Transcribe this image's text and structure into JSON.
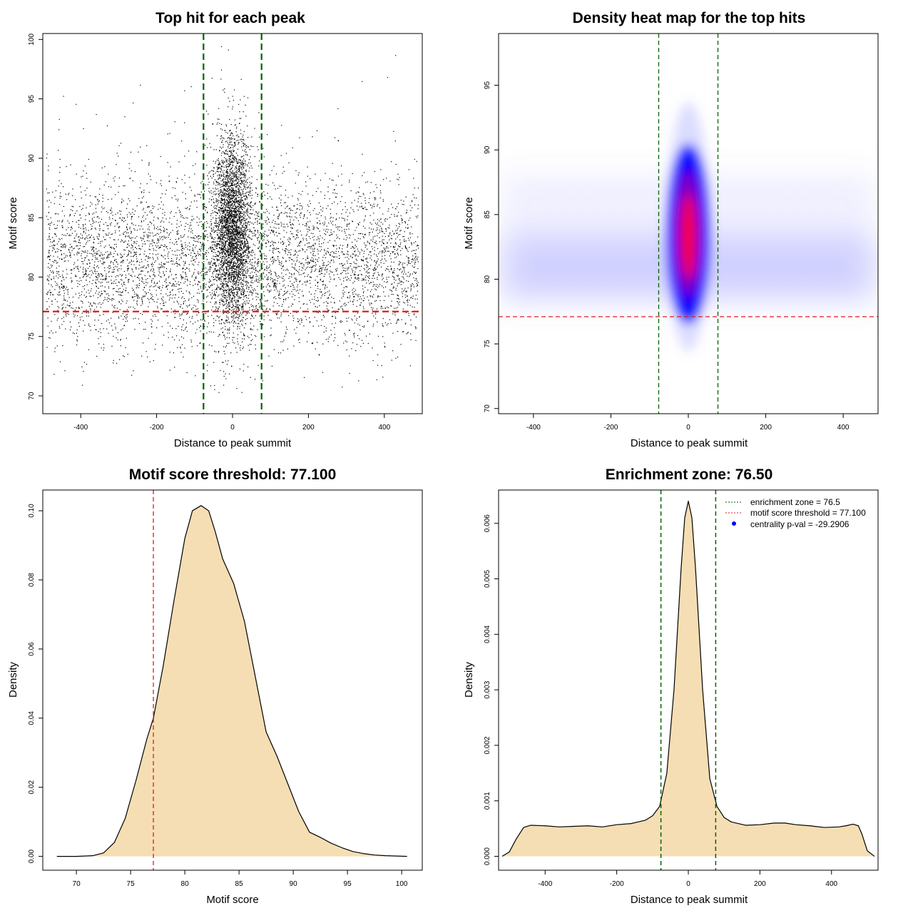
{
  "chart_data": [
    {
      "type": "scatter",
      "title": "Top hit for each peak",
      "xlabel": "Distance to peak summit",
      "ylabel": "Motif score",
      "xlim": [
        -500,
        500
      ],
      "ylim": [
        68.5,
        100.5
      ],
      "xticks": [
        -400,
        -200,
        0,
        200,
        400
      ],
      "yticks": [
        70,
        75,
        80,
        85,
        90,
        95,
        100
      ],
      "vlines": [
        -76.5,
        76.5
      ],
      "hline": 77.1,
      "vline_color": "#006400",
      "hline_color": "#e31a1c",
      "point_color": "#000000",
      "background_points": {
        "x_range": [
          -490,
          490
        ],
        "y_mean": 81.2,
        "y_sd": 3.4
      },
      "central_points": {
        "x_mean": 0,
        "x_sd": 25,
        "y_mean": 84,
        "y_sd": 4
      }
    },
    {
      "type": "heatmap",
      "title": "Density heat map for the top hits",
      "xlabel": "Distance to peak summit",
      "ylabel": "Motif score",
      "xlim": [
        -490,
        490
      ],
      "ylim": [
        69.6,
        99
      ],
      "xticks": [
        -400,
        -200,
        0,
        200,
        400
      ],
      "yticks": [
        70,
        75,
        80,
        85,
        90,
        95
      ],
      "vlines": [
        -76.5,
        76.5
      ],
      "hline": 77.1,
      "vline_color": "#006400",
      "hline_color": "#e31a1c",
      "colors": [
        "#ffffff",
        "#0000ff",
        "#ff0000"
      ],
      "peak_center": {
        "x": 0,
        "y": 83.5
      }
    },
    {
      "type": "area",
      "title": "Motif score threshold: 77.100",
      "xlabel": "Motif score",
      "ylabel": "Density",
      "xlim": [
        66.9,
        101.9
      ],
      "ylim": [
        -0.004,
        0.106
      ],
      "xticks": [
        70,
        75,
        80,
        85,
        90,
        95,
        100
      ],
      "yticks": [
        0.0,
        0.02,
        0.04,
        0.06,
        0.08,
        0.1
      ],
      "ytick_labels": [
        "0.00",
        "0.02",
        "0.04",
        "0.06",
        "0.08",
        "0.10"
      ],
      "vline": 77.1,
      "vline_color": "#e31a1c",
      "fill": "#f5deb3",
      "x": [
        68.2,
        70,
        71.5,
        72.5,
        73.5,
        74.5,
        75.5,
        76.5,
        77.1,
        78,
        79,
        80,
        80.7,
        81.5,
        82.2,
        82.8,
        83.5,
        84.5,
        85.5,
        86.5,
        87.5,
        88.5,
        89.5,
        90.5,
        91.5,
        92.5,
        93.5,
        94.5,
        95.5,
        96.5,
        97.5,
        98.5,
        100.5
      ],
      "y": [
        0,
        0,
        0.0002,
        0.001,
        0.004,
        0.011,
        0.022,
        0.034,
        0.04,
        0.055,
        0.074,
        0.092,
        0.1,
        0.1015,
        0.1,
        0.094,
        0.086,
        0.079,
        0.068,
        0.052,
        0.036,
        0.029,
        0.021,
        0.013,
        0.007,
        0.0055,
        0.0038,
        0.0025,
        0.0014,
        0.0008,
        0.0004,
        0.0002,
        0
      ]
    },
    {
      "type": "area",
      "title": "Enrichment zone: 76.50",
      "xlabel": "Distance to peak summit",
      "ylabel": "Density",
      "xlim": [
        -530,
        530
      ],
      "ylim": [
        -0.00025,
        0.0066
      ],
      "xticks": [
        -400,
        -200,
        0,
        200,
        400
      ],
      "yticks": [
        0,
        0.001,
        0.002,
        0.003,
        0.004,
        0.005,
        0.006
      ],
      "ytick_labels": [
        "0.000",
        "0.001",
        "0.002",
        "0.003",
        "0.004",
        "0.005",
        "0.006"
      ],
      "vlines": [
        -76.5,
        76.5
      ],
      "vline_color": "#006400",
      "fill": "#f5deb3",
      "x": [
        -520,
        -500,
        -480,
        -460,
        -440,
        -400,
        -360,
        -320,
        -280,
        -240,
        -200,
        -160,
        -120,
        -100,
        -80,
        -60,
        -40,
        -20,
        -10,
        0,
        10,
        20,
        40,
        60,
        80,
        100,
        120,
        160,
        200,
        240,
        270,
        300,
        340,
        380,
        420,
        440,
        460,
        475,
        485,
        500,
        520
      ],
      "y": [
        0,
        8e-05,
        0.00032,
        0.00052,
        0.00056,
        0.00055,
        0.00053,
        0.00054,
        0.00055,
        0.00053,
        0.00057,
        0.00059,
        0.00065,
        0.00073,
        0.0009,
        0.0015,
        0.003,
        0.0052,
        0.0061,
        0.0064,
        0.0061,
        0.0052,
        0.003,
        0.0014,
        0.0009,
        0.0007,
        0.00062,
        0.00056,
        0.00057,
        0.0006,
        0.0006,
        0.00057,
        0.00055,
        0.00052,
        0.00053,
        0.00055,
        0.00058,
        0.00055,
        0.0004,
        0.0001,
        0
      ]
    }
  ],
  "legend": {
    "items": [
      {
        "label": "enrichment zone = 76.5",
        "color": "#006400",
        "style": "dotted-line"
      },
      {
        "label": "motif score threshold = 77.100",
        "color": "#e31a1c",
        "style": "dotted-line"
      },
      {
        "label": "centrality p-val = -29.2906",
        "color": "#0000ff",
        "style": "dot"
      }
    ]
  }
}
